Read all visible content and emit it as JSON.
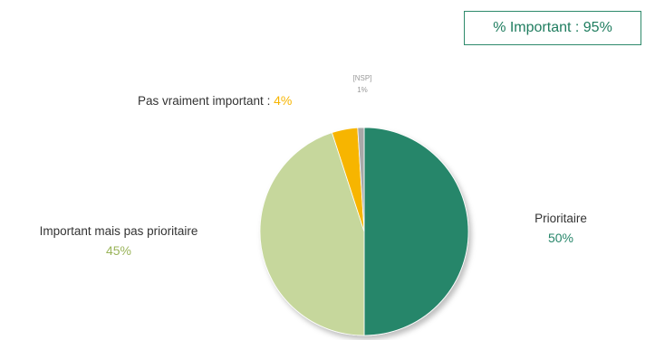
{
  "summary": {
    "label": "% Important : 95%",
    "color": "#2e8a6b"
  },
  "chart_data": {
    "type": "pie",
    "start_angle_deg": 0,
    "direction": "clockwise",
    "slices": [
      {
        "label": "Prioritaire",
        "value": 50,
        "display": "50%",
        "color": "#27866a"
      },
      {
        "label": "Important mais pas prioritaire",
        "value": 45,
        "display": "45%",
        "color": "#c6d79c"
      },
      {
        "label": "Pas vraiment important",
        "value": 4,
        "display": "4%",
        "color": "#f7b500"
      },
      {
        "label": "[NSP]",
        "value": 1,
        "display": "1%",
        "color": "#a8a8a8"
      }
    ]
  }
}
